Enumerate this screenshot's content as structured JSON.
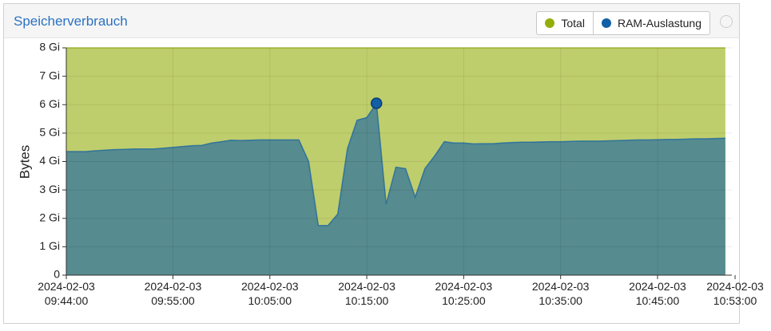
{
  "header": {
    "title": "Speicherverbrauch"
  },
  "chart_data": {
    "type": "area",
    "y_label": "Bytes",
    "legend_position": "top-right",
    "grid": true,
    "x": [
      "2024-02-03 09:44:00",
      "2024-02-03 09:45:00",
      "2024-02-03 09:46:00",
      "2024-02-03 09:47:00",
      "2024-02-03 09:48:00",
      "2024-02-03 09:49:00",
      "2024-02-03 09:50:00",
      "2024-02-03 09:51:00",
      "2024-02-03 09:52:00",
      "2024-02-03 09:53:00",
      "2024-02-03 09:54:00",
      "2024-02-03 09:55:00",
      "2024-02-03 09:56:00",
      "2024-02-03 09:57:00",
      "2024-02-03 09:58:00",
      "2024-02-03 09:59:00",
      "2024-02-03 10:00:00",
      "2024-02-03 10:01:00",
      "2024-02-03 10:02:00",
      "2024-02-03 10:03:00",
      "2024-02-03 10:04:00",
      "2024-02-03 10:05:00",
      "2024-02-03 10:06:00",
      "2024-02-03 10:07:00",
      "2024-02-03 10:08:00",
      "2024-02-03 10:09:00",
      "2024-02-03 10:10:00",
      "2024-02-03 10:11:00",
      "2024-02-03 10:12:00",
      "2024-02-03 10:13:00",
      "2024-02-03 10:14:00",
      "2024-02-03 10:15:00",
      "2024-02-03 10:16:00",
      "2024-02-03 10:17:00",
      "2024-02-03 10:18:00",
      "2024-02-03 10:19:00",
      "2024-02-03 10:20:00",
      "2024-02-03 10:21:00",
      "2024-02-03 10:22:00",
      "2024-02-03 10:23:00",
      "2024-02-03 10:24:00",
      "2024-02-03 10:25:00",
      "2024-02-03 10:26:00",
      "2024-02-03 10:27:00",
      "2024-02-03 10:28:00",
      "2024-02-03 10:29:00",
      "2024-02-03 10:30:00",
      "2024-02-03 10:31:00",
      "2024-02-03 10:32:00",
      "2024-02-03 10:33:00",
      "2024-02-03 10:34:00",
      "2024-02-03 10:35:00",
      "2024-02-03 10:36:00",
      "2024-02-03 10:37:00",
      "2024-02-03 10:38:00",
      "2024-02-03 10:39:00",
      "2024-02-03 10:40:00",
      "2024-02-03 10:41:00",
      "2024-02-03 10:42:00",
      "2024-02-03 10:43:00",
      "2024-02-03 10:44:00",
      "2024-02-03 10:45:00",
      "2024-02-03 10:46:00",
      "2024-02-03 10:47:00",
      "2024-02-03 10:48:00",
      "2024-02-03 10:49:00",
      "2024-02-03 10:50:00",
      "2024-02-03 10:51:00",
      "2024-02-03 10:52:00"
    ],
    "series": [
      {
        "name": "Total",
        "color": "#94ae0a",
        "values": [
          8,
          8,
          8,
          8,
          8,
          8,
          8,
          8,
          8,
          8,
          8,
          8,
          8,
          8,
          8,
          8,
          8,
          8,
          8,
          8,
          8,
          8,
          8,
          8,
          8,
          8,
          8,
          8,
          8,
          8,
          8,
          8,
          8,
          8,
          8,
          8,
          8,
          8,
          8,
          8,
          8,
          8,
          8,
          8,
          8,
          8,
          8,
          8,
          8,
          8,
          8,
          8,
          8,
          8,
          8,
          8,
          8,
          8,
          8,
          8,
          8,
          8,
          8,
          8,
          8,
          8,
          8,
          8,
          8
        ]
      },
      {
        "name": "RAM-Auslastung",
        "color": "#115fa6",
        "values": [
          4.35,
          4.35,
          4.35,
          4.38,
          4.4,
          4.42,
          4.43,
          4.44,
          4.44,
          4.44,
          4.47,
          4.5,
          4.53,
          4.56,
          4.57,
          4.65,
          4.7,
          4.75,
          4.74,
          4.75,
          4.76,
          4.76,
          4.76,
          4.76,
          4.76,
          4.0,
          1.75,
          1.75,
          2.15,
          4.45,
          5.45,
          5.55,
          6.05,
          2.5,
          3.8,
          3.75,
          2.75,
          3.75,
          4.2,
          4.7,
          4.65,
          4.65,
          4.62,
          4.63,
          4.63,
          4.65,
          4.67,
          4.68,
          4.68,
          4.69,
          4.7,
          4.7,
          4.71,
          4.72,
          4.72,
          4.72,
          4.73,
          4.74,
          4.75,
          4.76,
          4.76,
          4.77,
          4.78,
          4.78,
          4.79,
          4.8,
          4.8,
          4.81,
          4.82
        ]
      }
    ],
    "xlim": [
      "2024-02-03 09:44:00",
      "2024-02-03 10:52:40"
    ],
    "xticks": [
      "2024-02-03 09:44:00",
      "2024-02-03 09:55:00",
      "2024-02-03 10:05:00",
      "2024-02-03 10:15:00",
      "2024-02-03 10:25:00",
      "2024-02-03 10:35:00",
      "2024-02-03 10:45:00",
      "2024-02-03 10:53:00"
    ],
    "ylim": [
      0,
      8
    ],
    "yticks": [
      0,
      {
        "value": 1,
        "label": "1 Gi"
      },
      {
        "value": 2,
        "label": "2 Gi"
      },
      {
        "value": 3,
        "label": "3 Gi"
      },
      {
        "value": 4,
        "label": "4 Gi"
      },
      {
        "value": 5,
        "label": "5 Gi"
      },
      {
        "value": 6,
        "label": "6 Gi"
      },
      {
        "value": 7,
        "label": "7 Gi"
      },
      {
        "value": 8,
        "label": "8 Gi"
      }
    ]
  }
}
